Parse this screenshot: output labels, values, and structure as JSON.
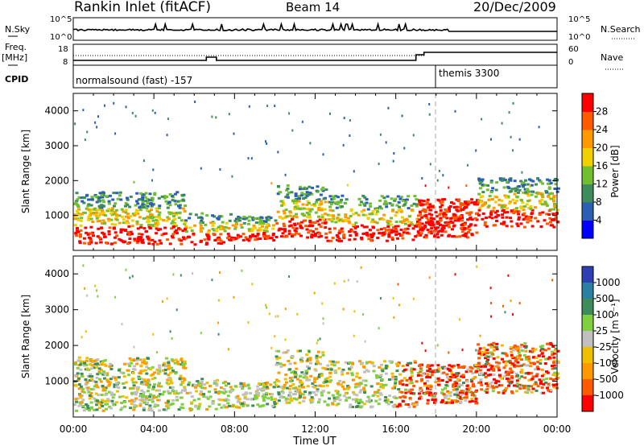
{
  "header": {
    "station": "Rankin Inlet (fitACF)",
    "beam": "Beam 14",
    "date": "20/Dec/2009"
  },
  "panels": {
    "nsky_label": "N.Sky",
    "nsky_ticks": [
      "10^5",
      "10^0"
    ],
    "nsearch_label": "N.Search",
    "nsearch_ticks": [
      "10^5",
      "10^0"
    ],
    "freq_label": "Freq.",
    "freq_unit": "[MHz]",
    "freq_ticks": [
      "18",
      "8"
    ],
    "nave_label": "Nave",
    "nave_ticks": [
      "60",
      "0"
    ],
    "cpid_label": "CPID",
    "cpid_segments": [
      {
        "label": "normalsound (fast) -157",
        "start": "00:00"
      },
      {
        "label": "themis 3300",
        "start": "18:00"
      }
    ]
  },
  "chart_data": [
    {
      "type": "heatmap",
      "name": "power",
      "ylabel": "Slant Range [km]",
      "yticks": [
        "1000",
        "2000",
        "3000",
        "4000"
      ],
      "xticks": [
        "00:00",
        "04:00",
        "08:00",
        "12:00",
        "16:00",
        "20:00",
        "00:00"
      ],
      "colorbar_label": "Power [dB]",
      "colorbar_ticks": [
        "4",
        "8",
        "12",
        "16",
        "20",
        "24",
        "28"
      ],
      "colorbar_colors": [
        "#0000ff",
        "#2b5fb5",
        "#3d8c5a",
        "#6fbf30",
        "#f0d000",
        "#ff9900",
        "#ff5a00",
        "#ff0000"
      ]
    },
    {
      "type": "heatmap",
      "name": "velocity",
      "ylabel": "Slant Range [km]",
      "yticks": [
        "1000",
        "2000",
        "3000",
        "4000"
      ],
      "xticks": [
        "00:00",
        "04:00",
        "08:00",
        "12:00",
        "16:00",
        "20:00",
        "00:00"
      ],
      "xlabel": "Time UT",
      "colorbar_label": "Velocity [m s⁻¹]",
      "colorbar_ticks": [
        "1000",
        "500",
        "100",
        "25",
        "-25",
        "-100",
        "-500",
        "-1000"
      ],
      "colorbar_colors": [
        "#2e3fb3",
        "#2b7fa0",
        "#3d8c5a",
        "#7fcf40",
        "#c0c0c0",
        "#f0c000",
        "#ff9900",
        "#ff5a00",
        "#ff0000"
      ]
    }
  ]
}
